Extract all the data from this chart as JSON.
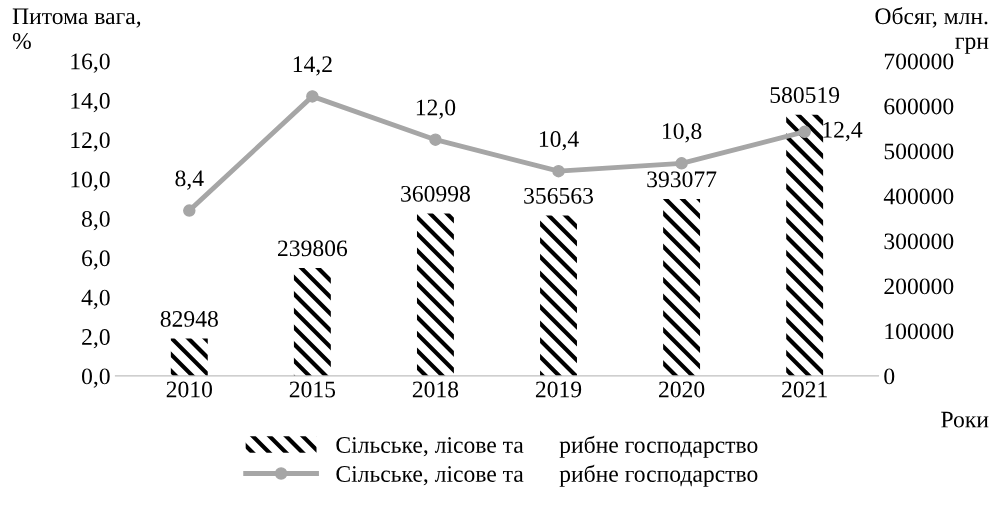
{
  "chart_data": {
    "type": "bar",
    "ylabel": "Питома вага,\n%",
    "y2label": "Обсяг, млн.\nгрн",
    "xlabel": "Роки",
    "categories": [
      "2010",
      "2015",
      "2018",
      "2019",
      "2020",
      "2021"
    ],
    "series": [
      {
        "name": "Сільське, лісове та      рибне господарство",
        "axis": "y2",
        "color": "#000000",
        "values": [
          82948,
          239806,
          360998,
          356563,
          393077,
          580519
        ],
        "value_labels": [
          "82948",
          "239806",
          "360998",
          "356563",
          "393077",
          "580519"
        ]
      },
      {
        "name": "Сільське, лісове та      рибне господарство",
        "type": "line",
        "color": "#a6a6a6",
        "values": [
          8.4,
          14.2,
          12.0,
          10.4,
          10.8,
          12.4
        ],
        "value_labels": [
          "8,4",
          "14,2",
          "12,0",
          "10,4",
          "10,8",
          "12,4"
        ]
      }
    ],
    "ylim": [
      0,
      16
    ],
    "yticks": [
      {
        "value": 0,
        "label": "0,0"
      },
      {
        "value": 2,
        "label": "2,0"
      },
      {
        "value": 4,
        "label": "4,0"
      },
      {
        "value": 6,
        "label": "6,0"
      },
      {
        "value": 8,
        "label": "8,0"
      },
      {
        "value": 10,
        "label": "10,0"
      },
      {
        "value": 12,
        "label": "12,0"
      },
      {
        "value": 14,
        "label": "14,0"
      },
      {
        "value": 16,
        "label": "16,0"
      }
    ],
    "y2lim": [
      0,
      700000
    ],
    "y2ticks": [
      0,
      100000,
      200000,
      300000,
      400000,
      500000,
      600000,
      700000
    ],
    "grid": false,
    "legend": "bottom",
    "marker": "circle",
    "line_style": "solid"
  }
}
